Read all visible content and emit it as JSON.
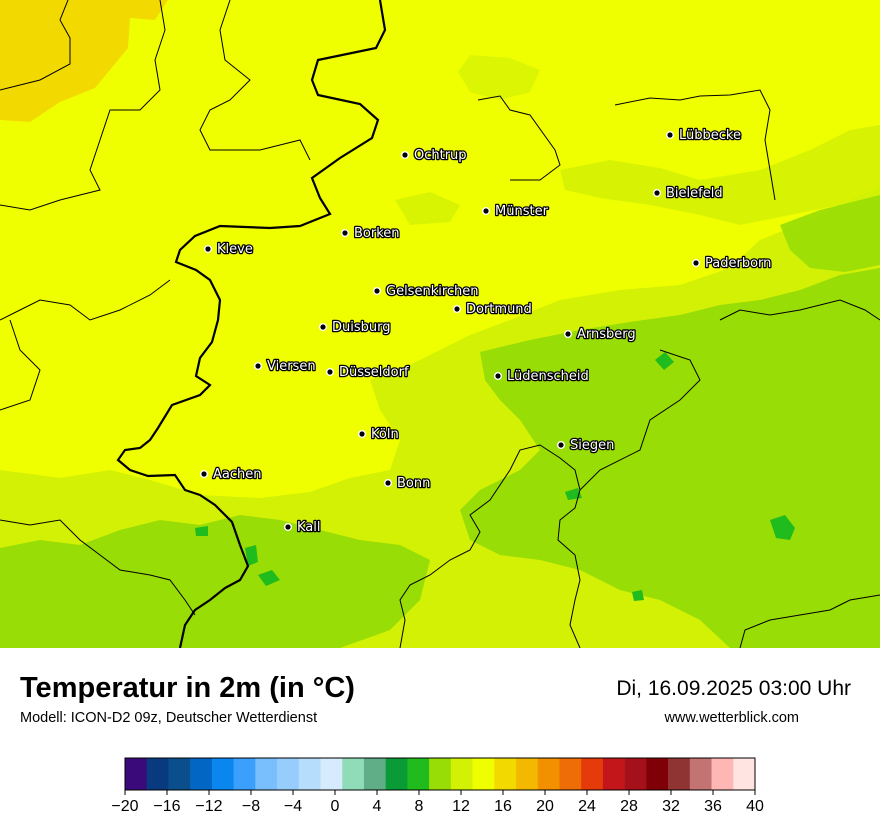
{
  "map": {
    "title": "Temperatur in 2m (in °C)",
    "model": "Modell: ICON-D2 09z, Deutscher Wetterdienst",
    "valid_time": "Di, 16.09.2025 03:00 Uhr",
    "website": "www.wetterblick.com",
    "cities": [
      {
        "name": "Ochtrup"
      },
      {
        "name": "Lübbecke"
      },
      {
        "name": "Bielefeld"
      },
      {
        "name": "Münster"
      },
      {
        "name": "Borken"
      },
      {
        "name": "Kleve"
      },
      {
        "name": "Paderborn"
      },
      {
        "name": "Gelsenkirchen"
      },
      {
        "name": "Dortmund"
      },
      {
        "name": "Duisburg"
      },
      {
        "name": "Arnsberg"
      },
      {
        "name": "Viersen"
      },
      {
        "name": "Düsseldorf"
      },
      {
        "name": "Lüdenscheid"
      },
      {
        "name": "Köln"
      },
      {
        "name": "Siegen"
      },
      {
        "name": "Aachen"
      },
      {
        "name": "Bonn"
      },
      {
        "name": "Kall"
      }
    ]
  },
  "legend": {
    "ticks": [
      "−20",
      "−16",
      "−12",
      "−8",
      "−4",
      "0",
      "4",
      "8",
      "12",
      "16",
      "20",
      "24",
      "28",
      "32",
      "36",
      "40"
    ],
    "colors": [
      "#3a0a7a",
      "#083a80",
      "#0a4f8c",
      "#0266c5",
      "#0a86ef",
      "#3aa0fb",
      "#79befd",
      "#97cdfd",
      "#b7ddfd",
      "#d6ebfd",
      "#90dcb8",
      "#5fae88",
      "#0a9b36",
      "#20bb1c",
      "#98dd05",
      "#d2f104",
      "#f0ff00",
      "#f2da00",
      "#f3b900",
      "#f29000",
      "#ef6d06",
      "#e53a0a",
      "#c3161a",
      "#a5111a",
      "#800008",
      "#8f3433",
      "#c27372",
      "#ffb7b5",
      "#ffe4e2"
    ]
  },
  "colors": {
    "yellow": "#f0ff00",
    "yellow_green": "#d2f104",
    "light_green": "#98dd05",
    "gold": "#f2da00"
  }
}
